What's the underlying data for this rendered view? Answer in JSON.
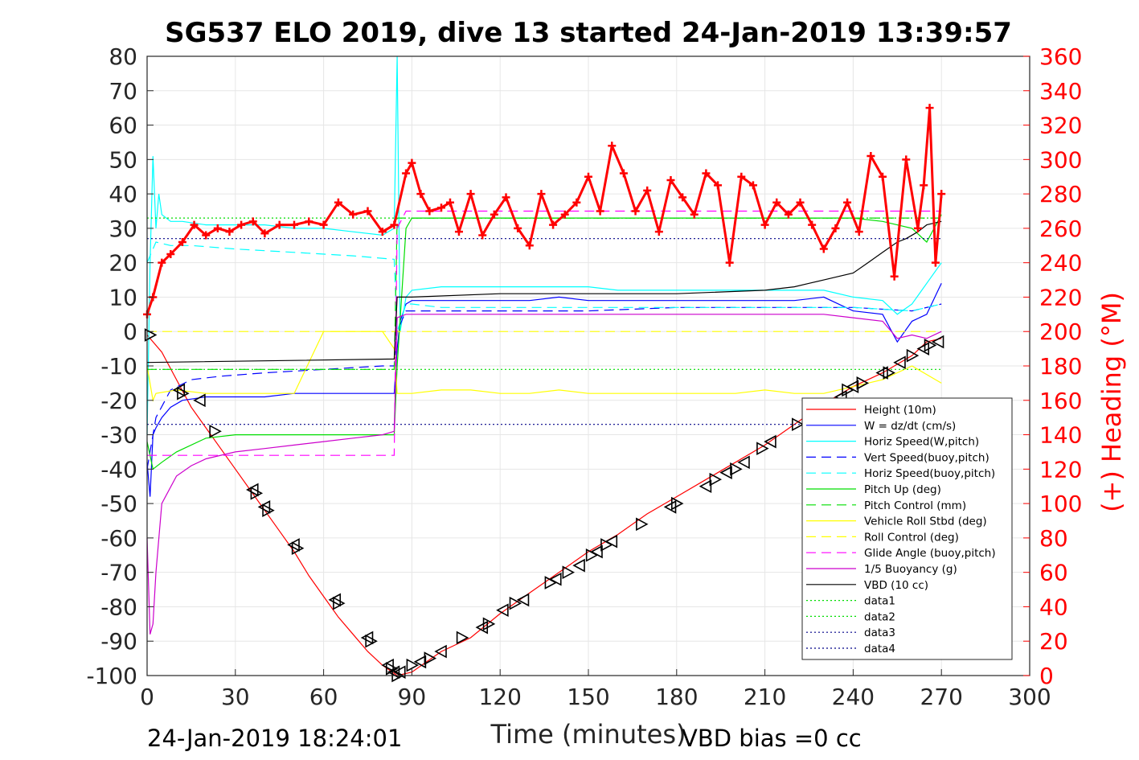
{
  "chart_data": {
    "type": "line",
    "title": "SG537 ELO 2019, dive 13 started 24-Jan-2019 13:39:57",
    "xlabel": "Time (minutes)",
    "ylabel": "",
    "y2label": "(+) Heading (°M)",
    "xlim": [
      0,
      300
    ],
    "ylim": [
      -100,
      80
    ],
    "y2lim": [
      0,
      360
    ],
    "xticks": [
      "0",
      "30",
      "60",
      "90",
      "120",
      "150",
      "180",
      "210",
      "240",
      "270",
      "300"
    ],
    "yticks": [
      "80",
      "70",
      "60",
      "50",
      "40",
      "30",
      "20",
      "10",
      "0",
      "-10",
      "-20",
      "-30",
      "-40",
      "-50",
      "-60",
      "-70",
      "-80",
      "-90",
      "-100"
    ],
    "y2ticks": [
      "360",
      "340",
      "320",
      "300",
      "280",
      "260",
      "240",
      "220",
      "200",
      "180",
      "160",
      "140",
      "120",
      "100",
      "80",
      "60",
      "40",
      "20",
      "0"
    ],
    "grid": true,
    "legend_position": "lower-right",
    "footer_left": "24-Jan-2019 18:24:01",
    "footer_right": "VBD bias =0 cc",
    "colors": {
      "heading": "#ff0000",
      "accent_axis": "#ff0000"
    },
    "series": [
      {
        "name": "Height (10m)",
        "color": "#ff0000",
        "style": "solid",
        "x": [
          0,
          5,
          10,
          15,
          20,
          25,
          30,
          35,
          40,
          45,
          50,
          55,
          60,
          65,
          70,
          75,
          80,
          85,
          90,
          95,
          100,
          110,
          120,
          130,
          140,
          150,
          160,
          170,
          180,
          190,
          200,
          210,
          220,
          230,
          240,
          250,
          260,
          265,
          270
        ],
        "y": [
          -1,
          -6,
          -14,
          -22,
          -28,
          -34,
          -40,
          -46,
          -52,
          -58,
          -64,
          -71,
          -77,
          -83,
          -88,
          -93,
          -97,
          -100,
          -99,
          -96,
          -93,
          -89,
          -82,
          -76,
          -70,
          -64,
          -59,
          -53,
          -48,
          -43,
          -38,
          -33,
          -27,
          -21,
          -16,
          -12,
          -7,
          -3,
          -2
        ]
      },
      {
        "name": "W = dz/dt (cm/s)",
        "color": "#0000ff",
        "style": "solid",
        "x": [
          0,
          1,
          2,
          3,
          5,
          8,
          12,
          20,
          30,
          40,
          50,
          60,
          70,
          80,
          84,
          85,
          86,
          88,
          90,
          100,
          110,
          120,
          130,
          140,
          150,
          160,
          170,
          180,
          190,
          200,
          210,
          220,
          230,
          240,
          250,
          255,
          260,
          265,
          270
        ],
        "y": [
          -38,
          -48,
          -30,
          -28,
          -25,
          -22,
          -20,
          -19,
          -19,
          -19,
          -18,
          -18,
          -18,
          -18,
          -18,
          -5,
          3,
          8,
          9,
          9,
          9,
          9,
          9,
          10,
          9,
          9,
          9,
          9,
          9,
          9,
          9,
          9,
          10,
          6,
          5,
          -3,
          3,
          5,
          14
        ]
      },
      {
        "name": "Horiz Speed(W,pitch)",
        "color": "#00ffff",
        "style": "solid",
        "x": [
          0,
          1,
          2,
          3,
          4,
          5,
          8,
          12,
          20,
          30,
          40,
          50,
          60,
          70,
          80,
          84,
          85,
          86,
          88,
          90,
          100,
          110,
          120,
          130,
          140,
          150,
          160,
          170,
          180,
          190,
          200,
          210,
          220,
          230,
          240,
          250,
          255,
          260,
          265,
          270
        ],
        "y": [
          -30,
          20,
          51,
          30,
          40,
          34,
          32,
          32,
          31,
          31,
          31,
          30,
          30,
          29,
          28,
          30,
          80,
          0,
          10,
          12,
          13,
          13,
          13,
          13,
          13,
          13,
          12,
          12,
          12,
          12,
          12,
          12,
          12,
          12,
          10,
          9,
          5,
          8,
          14,
          20
        ]
      },
      {
        "name": "Vert Speed(buoy,pitch)",
        "color": "#0000ff",
        "style": "dashed",
        "x": [
          0,
          3,
          8,
          15,
          25,
          40,
          60,
          80,
          84,
          85,
          88,
          90,
          100,
          120,
          150,
          180,
          210,
          240,
          260,
          270
        ],
        "y": [
          -40,
          -25,
          -17,
          -14,
          -13,
          -12,
          -11,
          -10,
          -10,
          0,
          6,
          6,
          6,
          6,
          6,
          7,
          7,
          7,
          6,
          8
        ]
      },
      {
        "name": "Horiz Speed(buoy,pitch)",
        "color": "#00ffff",
        "style": "dashed",
        "x": [
          0,
          3,
          8,
          15,
          30,
          50,
          70,
          84,
          85,
          88,
          90,
          100,
          120,
          150,
          180,
          210,
          240,
          260,
          270
        ],
        "y": [
          20,
          26,
          25,
          25,
          24,
          23,
          22,
          21,
          0,
          8,
          8,
          7,
          7,
          7,
          7,
          7,
          7,
          6,
          8
        ]
      },
      {
        "name": "Pitch Up (deg)",
        "color": "#00dd00",
        "style": "solid",
        "x": [
          0,
          2,
          5,
          10,
          20,
          30,
          40,
          50,
          60,
          70,
          80,
          84,
          85,
          88,
          90,
          100,
          120,
          150,
          180,
          210,
          240,
          250,
          260,
          265,
          270
        ],
        "y": [
          -32,
          -40,
          -38,
          -35,
          -31,
          -30,
          -30,
          -30,
          -30,
          -30,
          -30,
          -30,
          -10,
          30,
          33,
          33,
          33,
          33,
          33,
          33,
          33,
          32,
          30,
          26,
          34
        ]
      },
      {
        "name": "Pitch Control (mm)",
        "color": "#00dd00",
        "style": "dashed",
        "x": [
          0,
          84,
          85,
          270
        ],
        "y": [
          -11,
          -11,
          33,
          33
        ]
      },
      {
        "name": "Vehicle Roll Stbd (deg)",
        "color": "#ffff00",
        "style": "solid",
        "x": [
          0,
          2,
          3,
          10,
          20,
          30,
          40,
          50,
          60,
          70,
          80,
          84,
          85,
          88,
          90,
          100,
          110,
          120,
          130,
          140,
          150,
          160,
          170,
          180,
          190,
          200,
          210,
          220,
          230,
          240,
          250,
          260,
          270
        ],
        "y": [
          -10,
          -20,
          -18,
          -17,
          -18,
          -18,
          -18,
          -18,
          0,
          0,
          0,
          -5,
          -18,
          -18,
          -18,
          -17,
          -17,
          -18,
          -18,
          -17,
          -18,
          -18,
          -18,
          -18,
          -18,
          -18,
          -17,
          -18,
          -18,
          -16,
          -14,
          -10,
          -15
        ]
      },
      {
        "name": "Roll Control (deg)",
        "color": "#ffff00",
        "style": "dashed",
        "x": [
          0,
          10,
          30,
          60,
          84,
          85,
          120,
          150,
          180,
          210,
          240,
          270
        ],
        "y": [
          0,
          0,
          0,
          0,
          0,
          0,
          0,
          0,
          0,
          0,
          0,
          0
        ]
      },
      {
        "name": "Glide Angle (buoy,pitch)",
        "color": "#ff00ff",
        "style": "dashed",
        "x": [
          0,
          84,
          85,
          88,
          90,
          270
        ],
        "y": [
          -36,
          -36,
          30,
          35,
          35,
          35
        ]
      },
      {
        "name": "1/5 Buoyancy (g)",
        "color": "#cc00cc",
        "style": "solid",
        "x": [
          0,
          1,
          2,
          3,
          5,
          10,
          15,
          20,
          30,
          40,
          50,
          60,
          70,
          80,
          84,
          85,
          88,
          90,
          100,
          120,
          150,
          180,
          210,
          230,
          240,
          250,
          255,
          260,
          265,
          270
        ],
        "y": [
          -60,
          -88,
          -85,
          -70,
          -50,
          -42,
          -39,
          -37,
          -35,
          -34,
          -33,
          -32,
          -31,
          -30,
          -29,
          4,
          5,
          5,
          5,
          5,
          5,
          5,
          5,
          5,
          4,
          3,
          -2,
          -1,
          -2,
          0
        ]
      },
      {
        "name": "VBD (10 cc)",
        "color": "#000000",
        "style": "solid",
        "x": [
          0,
          84,
          85,
          86,
          90,
          120,
          150,
          180,
          210,
          220,
          225,
          230,
          240,
          245,
          250,
          255,
          258,
          262,
          265,
          270
        ],
        "y": [
          -9,
          -8,
          10,
          10,
          10,
          11,
          11,
          11,
          12,
          13,
          14,
          15,
          17,
          20,
          23,
          26,
          27,
          29,
          31,
          32
        ]
      },
      {
        "name": "data1",
        "color": "#00dd00",
        "style": "dotted",
        "x": [
          0,
          270
        ],
        "y": [
          33,
          33
        ]
      },
      {
        "name": "data2",
        "color": "#00dd00",
        "style": "dotted",
        "x": [
          0,
          270
        ],
        "y": [
          -11,
          -11
        ]
      },
      {
        "name": "data3",
        "color": "#000088",
        "style": "dotted",
        "x": [
          0,
          270
        ],
        "y": [
          27,
          27
        ]
      },
      {
        "name": "data4",
        "color": "#000088",
        "style": "dotted",
        "x": [
          0,
          270
        ],
        "y": [
          -27,
          -27
        ]
      }
    ],
    "heading": {
      "axis": "right",
      "color": "#ff0000",
      "marker": "+",
      "x": [
        0,
        2,
        5,
        8,
        12,
        16,
        20,
        24,
        28,
        32,
        36,
        40,
        45,
        50,
        55,
        60,
        65,
        70,
        75,
        80,
        84,
        88,
        90,
        93,
        96,
        100,
        103,
        106,
        110,
        114,
        118,
        122,
        126,
        130,
        134,
        138,
        142,
        146,
        150,
        154,
        158,
        162,
        166,
        170,
        174,
        178,
        182,
        186,
        190,
        194,
        198,
        202,
        206,
        210,
        214,
        218,
        222,
        226,
        230,
        234,
        238,
        242,
        246,
        250,
        254,
        258,
        262,
        264,
        266,
        268,
        270
      ],
      "y": [
        210,
        220,
        240,
        245,
        252,
        262,
        256,
        260,
        258,
        262,
        264,
        257,
        262,
        262,
        264,
        262,
        275,
        268,
        270,
        258,
        262,
        292,
        298,
        280,
        270,
        272,
        275,
        258,
        280,
        256,
        268,
        278,
        260,
        250,
        280,
        262,
        268,
        275,
        290,
        270,
        308,
        292,
        270,
        282,
        258,
        288,
        278,
        268,
        292,
        285,
        240,
        290,
        285,
        262,
        275,
        268,
        275,
        262,
        248,
        260,
        275,
        258,
        302,
        290,
        232,
        300,
        260,
        285,
        330,
        240,
        280
      ]
    },
    "markers": {
      "color": "#000000",
      "x": [
        1,
        11,
        12,
        18,
        23,
        36,
        37,
        40,
        41,
        50,
        51,
        64,
        65,
        75,
        76,
        82,
        83,
        84,
        85,
        86,
        90,
        93,
        96,
        100,
        107,
        114,
        116,
        121,
        125,
        128,
        137,
        139,
        143,
        147,
        151,
        153,
        156,
        158,
        168,
        178,
        180,
        190,
        193,
        197,
        200,
        203,
        209,
        212,
        221,
        236,
        238,
        240,
        243,
        250,
        252,
        256,
        260,
        264,
        266,
        269
      ],
      "y": [
        -1,
        -17,
        -18,
        -20,
        -29,
        -46,
        -47,
        -51,
        -52,
        -62,
        -63,
        -78,
        -79,
        -89,
        -90,
        -97,
        -98,
        -99,
        -100,
        -99,
        -97,
        -96,
        -95,
        -93,
        -89,
        -86,
        -85,
        -81,
        -79,
        -78,
        -73,
        -72,
        -70,
        -68,
        -65,
        -64,
        -62,
        -61,
        -56,
        -51,
        -50,
        -45,
        -43,
        -41,
        -40,
        -38,
        -34,
        -32,
        -27,
        -19,
        -17,
        -16,
        -15,
        -12,
        -12,
        -9,
        -7,
        -5,
        -4,
        -3
      ]
    }
  }
}
